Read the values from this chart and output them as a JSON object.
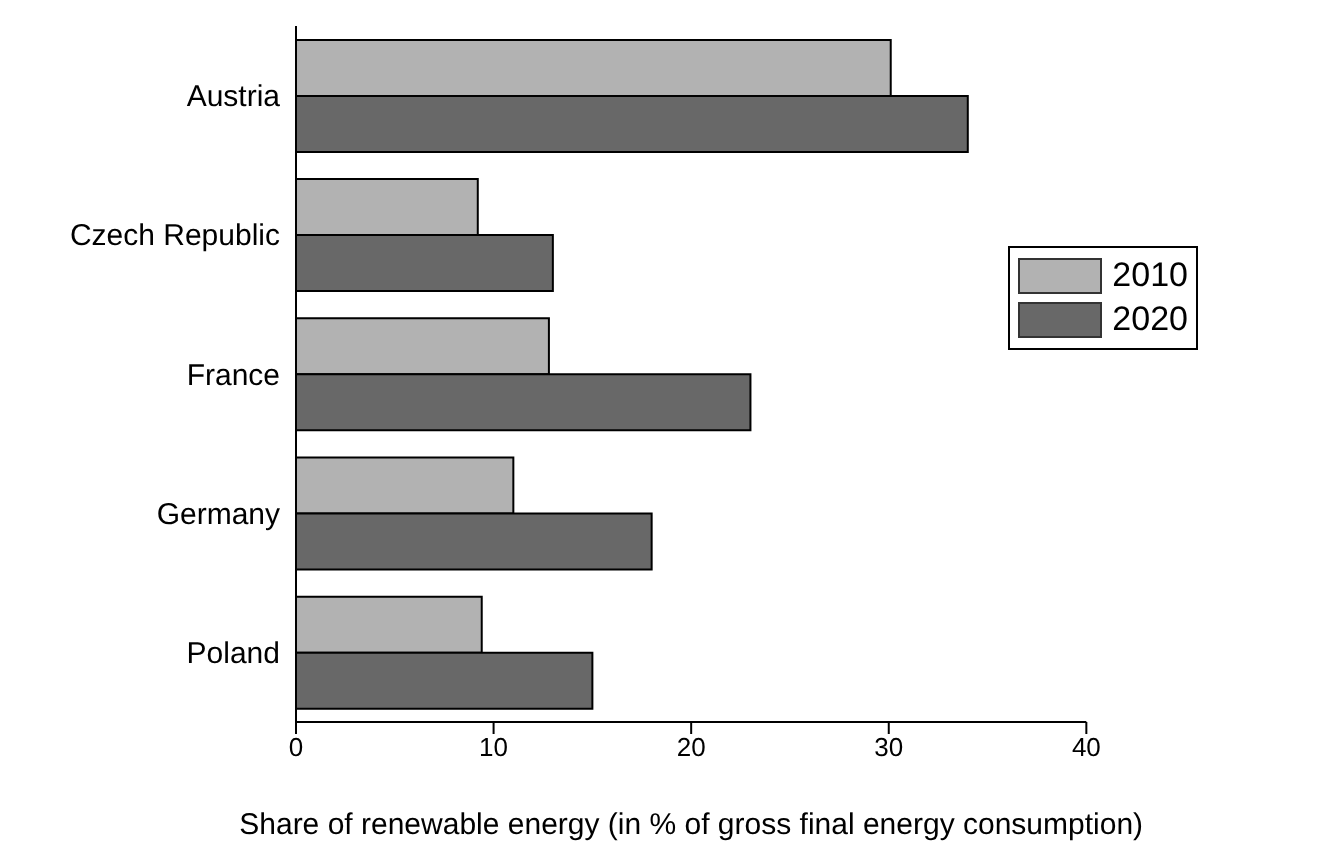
{
  "chart_data": {
    "type": "bar",
    "orientation": "horizontal",
    "xlabel": "Share of renewable energy (in % of gross final energy consumption)",
    "categories": [
      "Austria",
      "Czech Republic",
      "France",
      "Germany",
      "Poland"
    ],
    "series": [
      {
        "name": "2010",
        "color": "#b2b2b2",
        "values": [
          30.1,
          9.2,
          12.8,
          11.0,
          9.4
        ]
      },
      {
        "name": "2020",
        "color": "#686868",
        "values": [
          34.0,
          13.0,
          23.0,
          18.0,
          15.0
        ]
      }
    ],
    "xlim": [
      0,
      40
    ],
    "xticks": [
      0,
      10,
      20,
      30,
      40
    ],
    "grid": false,
    "legend": "top right"
  }
}
